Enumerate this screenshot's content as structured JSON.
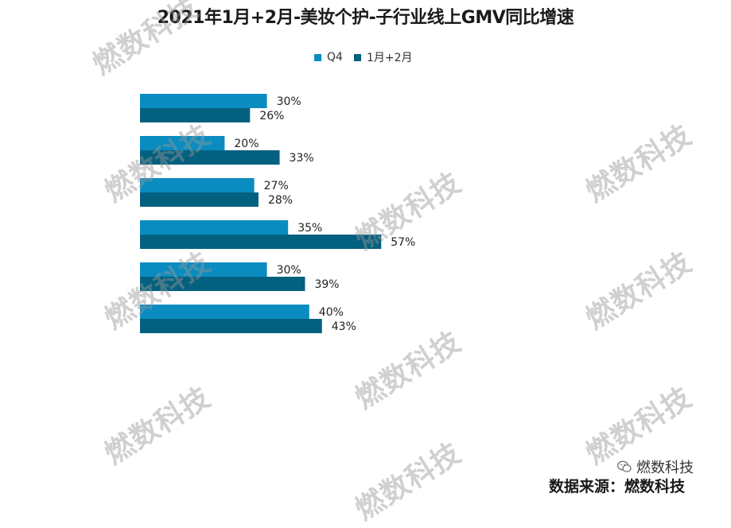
{
  "chart_data": {
    "type": "bar",
    "orientation": "horizontal",
    "title": "2021年1月+2月-美妆个护-子行业线上GMV同比增速",
    "categories": [
      "",
      "",
      "",
      "",
      "",
      ""
    ],
    "series": [
      {
        "name": "Q4",
        "color": "#0A8CC0",
        "values": [
          30,
          20,
          27,
          35,
          30,
          40
        ],
        "labels": [
          "30%",
          "20%",
          "27%",
          "35%",
          "30%",
          "40%"
        ]
      },
      {
        "name": "1月+2月",
        "color": "#04607F",
        "values": [
          26,
          33,
          28,
          57,
          39,
          43
        ],
        "labels": [
          "26%",
          "33%",
          "28%",
          "57%",
          "39%",
          "43%"
        ]
      }
    ],
    "xlim": [
      0,
      100
    ],
    "grid": false,
    "legend_position": "top"
  },
  "watermark_text": "燃数科技",
  "source_text": "数据来源：燃数科技",
  "brand": {
    "name": "燃数科技",
    "icon": "wechat-icon"
  }
}
